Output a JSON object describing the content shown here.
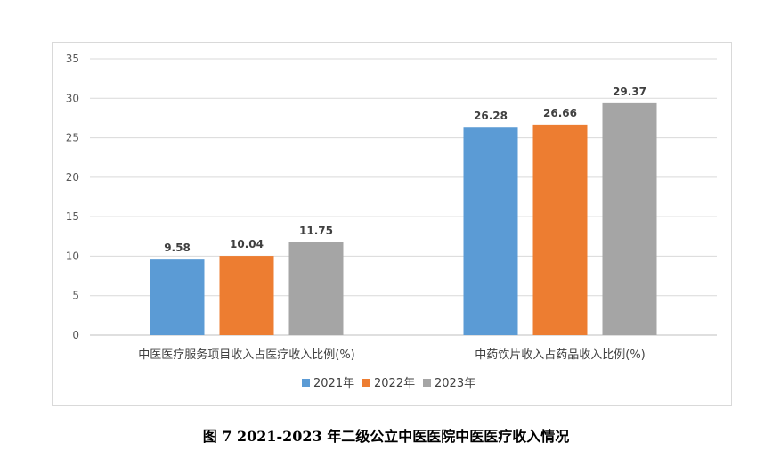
{
  "caption": "图 7 2021-2023 年二级公立中医医院中医医疗收入情况",
  "colors": {
    "2021年": "#5b9bd5",
    "2022年": "#ed7d31",
    "2023年": "#a5a5a5",
    "grid": "#d9d9d9",
    "axis": "#bfbfbf"
  },
  "chart_data": {
    "type": "bar",
    "title": "",
    "xlabel": "",
    "ylabel": "",
    "ylim": [
      0,
      35
    ],
    "yticks": [
      0,
      5,
      10,
      15,
      20,
      25,
      30,
      35
    ],
    "grid": true,
    "legend_position": "bottom",
    "categories": [
      "中医医疗服务项目收入占医疗收入比例(%)",
      "中药饮片收入占药品收入比例(%)"
    ],
    "series": [
      {
        "name": "2021年",
        "values": [
          9.58,
          26.28
        ],
        "labels": [
          "9.58",
          "26.28"
        ]
      },
      {
        "name": "2022年",
        "values": [
          10.04,
          26.66
        ],
        "labels": [
          "10.04",
          "26.66"
        ]
      },
      {
        "name": "2023年",
        "values": [
          11.75,
          29.37
        ],
        "labels": [
          "11.75",
          "29.37"
        ]
      }
    ]
  }
}
